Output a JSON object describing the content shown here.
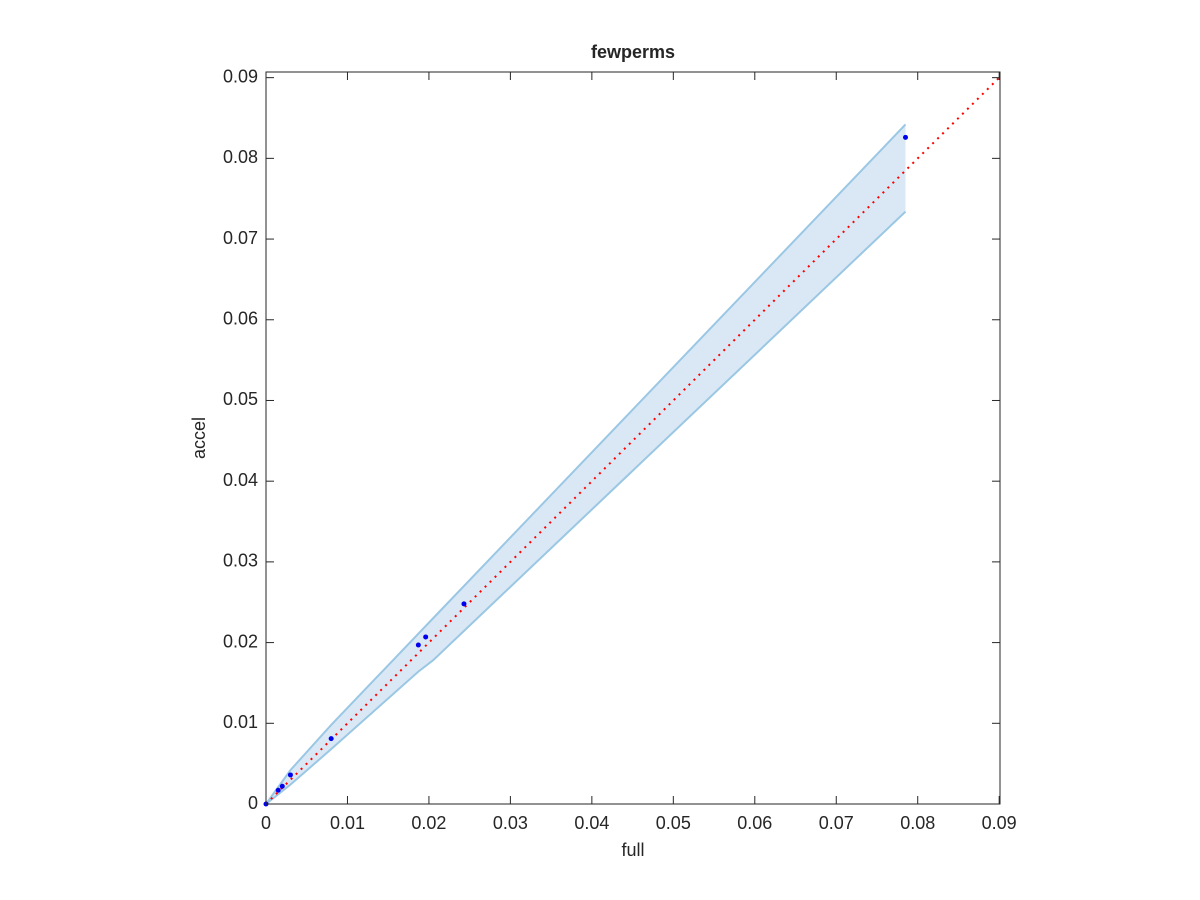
{
  "chart_data": {
    "type": "scatter",
    "title": "fewperms",
    "xlabel": "full",
    "ylabel": "accel",
    "x": [
      0,
      0.0015,
      0.002,
      0.003,
      0.008,
      0.0187,
      0.0196,
      0.0243,
      0.0785
    ],
    "values": [
      0,
      0.0017,
      0.0022,
      0.0036,
      0.0081,
      0.0197,
      0.0207,
      0.0248,
      0.0826
    ],
    "color": "#0000ee",
    "band": {
      "x": [
        0,
        0.003,
        0.008,
        0.0187,
        0.0205,
        0.0785
      ],
      "upper": [
        0,
        0.0042,
        0.0098,
        0.0211,
        0.023,
        0.0842
      ],
      "lower": [
        0,
        0.0024,
        0.0068,
        0.0164,
        0.0178,
        0.0734
      ],
      "color": "#9ac7e4",
      "fill": "#dae8f5"
    },
    "diagonal": true,
    "diagonal_color": "#ff0000",
    "xlim": [
      0,
      0.0901
    ],
    "ylim": [
      0,
      0.0907
    ],
    "xticks": [
      0,
      0.01,
      0.02,
      0.03,
      0.04,
      0.05,
      0.06,
      0.07,
      0.08,
      0.09
    ],
    "yticks": [
      0,
      0.01,
      0.02,
      0.03,
      0.04,
      0.05,
      0.06,
      0.07,
      0.08,
      0.09
    ]
  }
}
